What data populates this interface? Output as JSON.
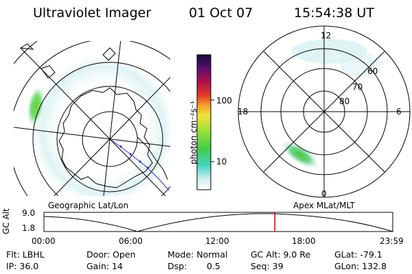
{
  "header": {
    "title": "Ultraviolet Imager",
    "date": "01 Oct 07",
    "time": "15:54:38 UT"
  },
  "colorbar": {
    "unit_label": "photon cm⁻²s⁻¹",
    "ticks": [
      "100",
      "10"
    ]
  },
  "polar_plot": {
    "hour_labels": [
      "12",
      "18",
      "6",
      "0"
    ],
    "lat_labels": [
      "60",
      "70",
      "80"
    ]
  },
  "panel_labels": {
    "left": "Geographic Lat/Lon",
    "right": "Apex MLat/MLT"
  },
  "orbit": {
    "ylabel": "GC Alt",
    "y_ticks": [
      "9.0",
      "1.8"
    ],
    "x_ticks": [
      "00:00",
      "06:00",
      "12:00",
      "18:00",
      "23:59"
    ],
    "marker_fraction": 0.662
  },
  "info": {
    "flt": "Flt: LBHL",
    "ip": "IP: 36.0",
    "door": "Door: Open",
    "gain": "Gain: 14",
    "mode": "Mode: Normal",
    "dsp_label": "Dsp:",
    "dsp_value": "0.5",
    "gc_alt": "GC Alt: 9.0 Re",
    "seq": "Seq: 39",
    "glat": "GLat: -79.1",
    "glon": "GLon: 132.8"
  },
  "colors": {
    "marker": "#cc0000",
    "aurora_green": "#5ed13c",
    "aurora_cyan": "#4fd3c8"
  }
}
